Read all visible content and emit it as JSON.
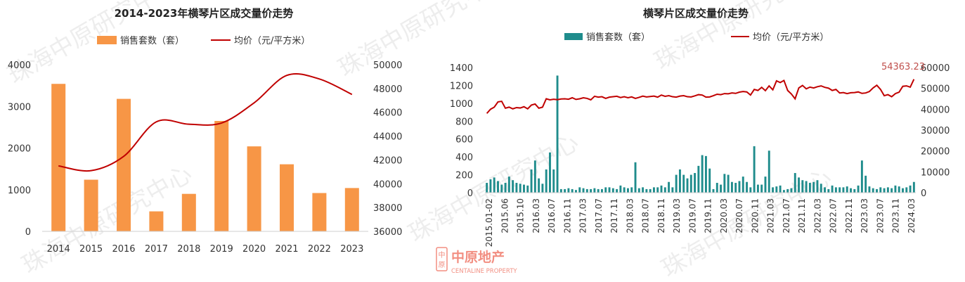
{
  "watermark": {
    "text": "珠海中原研究中心"
  },
  "brand": {
    "cn": "中原地产",
    "en": "CENTALINE PROPERTY",
    "color": "#e8331c"
  },
  "colors": {
    "orange": "#f79646",
    "teal": "#1f8c8c",
    "darkred": "#c00000",
    "label_red": "#c0504d"
  },
  "chart_data": [
    {
      "type": "bar",
      "title": "2014-2023年横琴片区成交量价走势",
      "categories": [
        "2014",
        "2015",
        "2016",
        "2017",
        "2018",
        "2019",
        "2020",
        "2021",
        "2022",
        "2023"
      ],
      "series": [
        {
          "name": "销售套数（套）",
          "type": "bar",
          "axis": "left",
          "color": "#f79646",
          "values": [
            3540,
            1240,
            3180,
            480,
            900,
            2650,
            2040,
            1610,
            920,
            1040
          ]
        },
        {
          "name": "均价（元/平方米）",
          "type": "line",
          "axis": "right",
          "color": "#c00000",
          "values": [
            41500,
            41100,
            42300,
            45200,
            45000,
            45100,
            46800,
            49100,
            48800,
            47500
          ]
        }
      ],
      "y_left": {
        "ylim": [
          0,
          4000
        ],
        "ticks": [
          0,
          1000,
          2000,
          3000,
          4000
        ]
      },
      "y_right": {
        "ylim": [
          36000,
          50000
        ],
        "ticks": [
          36000,
          38000,
          40000,
          42000,
          44000,
          46000,
          48000,
          50000
        ]
      },
      "grid": false,
      "legend": "top"
    },
    {
      "type": "bar",
      "title": "横琴片区成交量价走势",
      "x_tick_labels": [
        "2015.01-02",
        "2015.06",
        "2015.10",
        "2016.03",
        "2016.07",
        "2016.11",
        "2017.03",
        "2017.07",
        "2017.11",
        "2018.03",
        "2018.07",
        "2018.11",
        "2019.03",
        "2019.07",
        "2019.11",
        "2020.03",
        "2020.07",
        "2020.11",
        "2021.03",
        "2021.07",
        "2021.11",
        "2022.03",
        "2022.07",
        "2022.11",
        "2023.03",
        "2023.07",
        "2023.11",
        "2024.03"
      ],
      "series": [
        {
          "name": "销售套数（套）",
          "type": "bar",
          "axis": "left",
          "color": "#1f8c8c",
          "values": [
            110,
            150,
            170,
            130,
            90,
            110,
            180,
            140,
            110,
            100,
            90,
            80,
            260,
            360,
            160,
            100,
            260,
            450,
            260,
            1310,
            40,
            40,
            50,
            40,
            30,
            60,
            50,
            40,
            40,
            50,
            40,
            40,
            60,
            60,
            50,
            40,
            80,
            60,
            50,
            60,
            340,
            50,
            60,
            40,
            40,
            60,
            60,
            80,
            60,
            120,
            60,
            200,
            260,
            200,
            160,
            200,
            220,
            300,
            420,
            410,
            270,
            40,
            110,
            90,
            210,
            200,
            120,
            110,
            130,
            180,
            120,
            60,
            520,
            90,
            90,
            180,
            470,
            60,
            70,
            80,
            30,
            40,
            50,
            220,
            170,
            140,
            130,
            110,
            120,
            140,
            100,
            60,
            40,
            80,
            60,
            60,
            60,
            70,
            50,
            40,
            80,
            360,
            190,
            70,
            50,
            40,
            60,
            50,
            60,
            50,
            80,
            70,
            50,
            60,
            80,
            120
          ],
          "last_label": null
        },
        {
          "name": "均价（元/平方米）",
          "type": "line",
          "axis": "right",
          "color": "#c00000",
          "values": [
            38000,
            40000,
            41000,
            43500,
            43800,
            40500,
            41000,
            40200,
            40800,
            40600,
            41200,
            40200,
            42000,
            42500,
            40500,
            41000,
            45000,
            44500,
            44800,
            44600,
            44900,
            45000,
            44800,
            45500,
            44700,
            45000,
            45500,
            45200,
            44500,
            46200,
            45800,
            46000,
            45200,
            45800,
            46000,
            46200,
            45600,
            46000,
            45500,
            45900,
            45200,
            45700,
            46300,
            45900,
            46100,
            46300,
            45800,
            46800,
            46200,
            46500,
            46000,
            45800,
            46300,
            46500,
            46000,
            45900,
            46400,
            47000,
            46800,
            45800,
            45900,
            46500,
            47200,
            47000,
            47500,
            47400,
            47800,
            47600,
            48200,
            48500,
            48300,
            46800,
            49500,
            49000,
            50500,
            48900,
            51200,
            49300,
            53600,
            52800,
            53800,
            49000,
            47300,
            45000,
            50200,
            51400,
            49800,
            50600,
            50200,
            50800,
            51200,
            50500,
            50100,
            49000,
            49500,
            47800,
            48000,
            47500,
            47900,
            48000,
            48300,
            47600,
            47800,
            48500,
            50200,
            51500,
            49500,
            46500,
            47000,
            46000,
            47500,
            48200,
            51000,
            51200,
            50600,
            54363.23
          ]
        }
      ],
      "value_label": "54363.23",
      "y_left": {
        "ylim": [
          0,
          1400
        ],
        "ticks": [
          0,
          200,
          400,
          600,
          800,
          1000,
          1200,
          1400
        ]
      },
      "y_right": {
        "ylim": [
          0,
          60000
        ],
        "ticks": [
          0,
          10000,
          20000,
          30000,
          40000,
          50000,
          60000
        ]
      },
      "grid": false,
      "legend": "top"
    }
  ]
}
